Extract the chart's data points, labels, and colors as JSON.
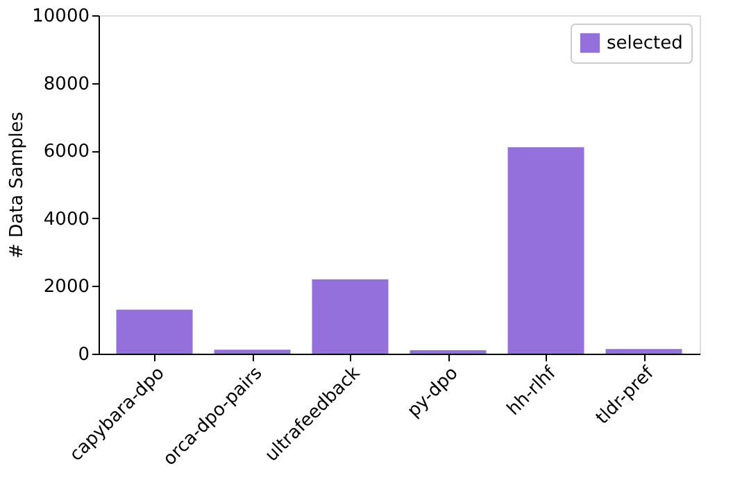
{
  "chart_data": {
    "type": "bar",
    "ylabel": "# Data Samples",
    "categories": [
      "capybara-dpo",
      "orca-dpo-pairs",
      "ultrafeedback",
      "py-dpo",
      "hh-rlhf",
      "tldr-pref"
    ],
    "series": [
      {
        "name": "selected",
        "color": "#9370db",
        "values": [
          1300,
          120,
          2200,
          100,
          6100,
          140
        ]
      }
    ],
    "ylim": [
      0,
      10000
    ],
    "yticks": [
      0,
      2000,
      4000,
      6000,
      8000,
      10000
    ],
    "grid": false,
    "legend": "top right"
  }
}
